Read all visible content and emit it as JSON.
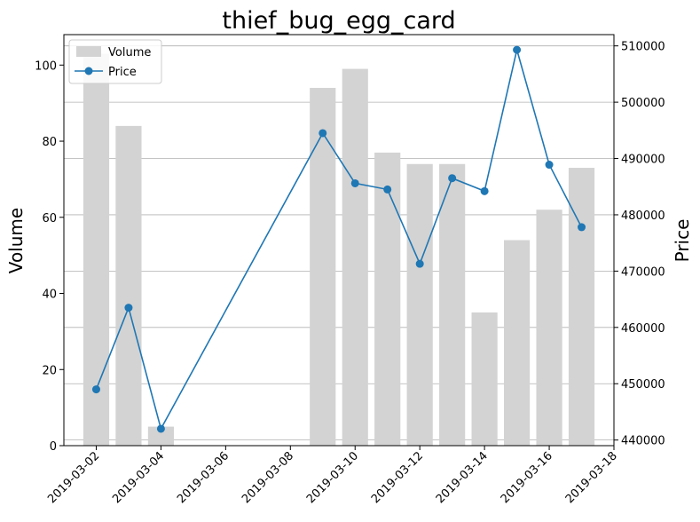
{
  "chart_data": {
    "type": "bar+line",
    "title": "thief_bug_egg_card",
    "xlabel": "",
    "y_left_label": "Volume",
    "y_right_label": "Price",
    "x_ticks": [
      "2019-03-02",
      "2019-03-04",
      "2019-03-06",
      "2019-03-08",
      "2019-03-10",
      "2019-03-12",
      "2019-03-14",
      "2019-03-16",
      "2019-03-18"
    ],
    "x_range": [
      "2019-03-01",
      "2019-03-18"
    ],
    "y_left_range": [
      0,
      108
    ],
    "y_left_ticks": [
      0,
      20,
      40,
      60,
      80,
      100
    ],
    "y_right_range": [
      439000,
      512000
    ],
    "y_right_ticks": [
      440000,
      450000,
      460000,
      470000,
      480000,
      490000,
      500000,
      510000
    ],
    "grid": "horizontal lines on the right (Price) axis",
    "legend": {
      "position": "top-left",
      "entries": [
        "Volume",
        "Price"
      ]
    },
    "colors": {
      "volume": "#d3d3d3",
      "price": "#1f77b4",
      "grid": "#b0b0b0"
    },
    "series": [
      {
        "name": "Volume",
        "type": "bar",
        "axis": "left",
        "x": [
          "2019-03-02",
          "2019-03-03",
          "2019-03-04",
          "2019-03-09",
          "2019-03-10",
          "2019-03-11",
          "2019-03-12",
          "2019-03-13",
          "2019-03-14",
          "2019-03-15",
          "2019-03-16",
          "2019-03-17"
        ],
        "values": [
          103,
          84,
          5,
          94,
          99,
          77,
          74,
          74,
          35,
          54,
          62,
          73
        ]
      },
      {
        "name": "Price",
        "type": "line",
        "axis": "right",
        "x": [
          "2019-03-02",
          "2019-03-03",
          "2019-03-04",
          "2019-03-09",
          "2019-03-10",
          "2019-03-11",
          "2019-03-12",
          "2019-03-13",
          "2019-03-14",
          "2019-03-15",
          "2019-03-16",
          "2019-03-17"
        ],
        "values": [
          449000,
          463500,
          442000,
          494500,
          485600,
          484500,
          471300,
          486500,
          484200,
          509300,
          488900,
          477800
        ]
      }
    ]
  }
}
